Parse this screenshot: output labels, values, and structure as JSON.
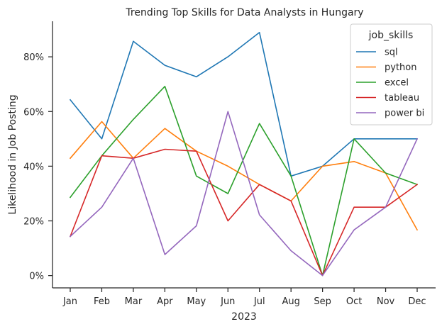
{
  "chart_data": {
    "type": "line",
    "title": "Trending Top Skills for Data Analysts in Hungary",
    "xlabel": "2023",
    "ylabel": "Likelihood in Job Posting",
    "categories": [
      "Jan",
      "Feb",
      "Mar",
      "Apr",
      "May",
      "Jun",
      "Jul",
      "Aug",
      "Sep",
      "Oct",
      "Nov",
      "Dec"
    ],
    "yticks": [
      0,
      20,
      40,
      60,
      80
    ],
    "ytick_labels": [
      "0%",
      "20%",
      "40%",
      "60%",
      "80%"
    ],
    "ylim": [
      -4.5,
      93
    ],
    "grid": false,
    "legend": {
      "title": "job_skills",
      "placement": "top-right"
    },
    "series": [
      {
        "name": "sql",
        "color": "#1f77b4",
        "values": [
          64.3,
          50.0,
          85.7,
          76.9,
          72.7,
          80.0,
          88.9,
          36.4,
          40.0,
          50.0,
          50.0,
          50.0
        ]
      },
      {
        "name": "python",
        "color": "#ff7f0e",
        "values": [
          42.9,
          56.3,
          42.9,
          53.8,
          45.5,
          40.0,
          33.3,
          27.3,
          40.0,
          41.7,
          37.5,
          16.7
        ]
      },
      {
        "name": "excel",
        "color": "#2ca02c",
        "values": [
          28.6,
          43.8,
          57.1,
          69.2,
          36.4,
          30.0,
          55.6,
          36.4,
          0.0,
          50.0,
          37.5,
          33.3
        ]
      },
      {
        "name": "tableau",
        "color": "#d62728",
        "values": [
          14.3,
          43.8,
          42.9,
          46.2,
          45.5,
          20.0,
          33.3,
          27.3,
          0.0,
          25.0,
          25.0,
          33.3
        ]
      },
      {
        "name": "power bi",
        "color": "#9467bd",
        "values": [
          14.3,
          25.0,
          42.9,
          7.7,
          18.2,
          60.0,
          22.2,
          9.1,
          0.0,
          16.7,
          25.0,
          50.0
        ]
      }
    ]
  }
}
